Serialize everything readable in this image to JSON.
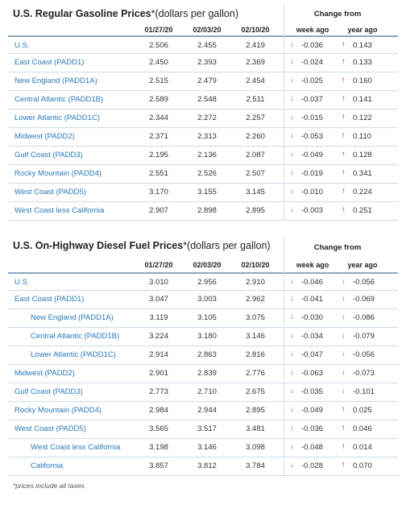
{
  "gasoline": {
    "title": "U.S. Regular Gasoline Prices",
    "title_unit": "*(dollars per gallon)",
    "change_from": "Change from",
    "columns": [
      "01/27/20",
      "02/03/20",
      "02/10/20",
      "week ago",
      "year ago"
    ],
    "rows": [
      {
        "region": "U.S.",
        "indent": false,
        "v1": "2.506",
        "v2": "2.455",
        "v3": "2.419",
        "week": "-0.036",
        "week_dir": "down",
        "year": "0.143",
        "year_dir": "up"
      },
      {
        "region": "East Coast (PADD1)",
        "indent": false,
        "v1": "2.450",
        "v2": "2.393",
        "v3": "2.369",
        "week": "-0.024",
        "week_dir": "down",
        "year": "0.133",
        "year_dir": "up"
      },
      {
        "region": "New England (PADD1A)",
        "indent": false,
        "v1": "2.515",
        "v2": "2.479",
        "v3": "2.454",
        "week": "-0.025",
        "week_dir": "down",
        "year": "0.160",
        "year_dir": "up"
      },
      {
        "region": "Central Atlantic (PADD1B)",
        "indent": false,
        "v1": "2.589",
        "v2": "2.548",
        "v3": "2.511",
        "week": "-0.037",
        "week_dir": "down",
        "year": "0.141",
        "year_dir": "up"
      },
      {
        "region": "Lower Atlantic (PADD1C)",
        "indent": false,
        "v1": "2.344",
        "v2": "2.272",
        "v3": "2.257",
        "week": "-0.015",
        "week_dir": "down",
        "year": "0.122",
        "year_dir": "up"
      },
      {
        "region": "Midwest (PADD2)",
        "indent": false,
        "v1": "2.371",
        "v2": "2.313",
        "v3": "2.260",
        "week": "-0.053",
        "week_dir": "down",
        "year": "0.110",
        "year_dir": "up"
      },
      {
        "region": "Gulf Coast (PADD3)",
        "indent": false,
        "v1": "2.195",
        "v2": "2.136",
        "v3": "2.087",
        "week": "-0.049",
        "week_dir": "down",
        "year": "0.128",
        "year_dir": "up"
      },
      {
        "region": "Rocky Mountain (PADD4)",
        "indent": false,
        "v1": "2.551",
        "v2": "2.526",
        "v3": "2.507",
        "week": "-0.019",
        "week_dir": "down",
        "year": "0.341",
        "year_dir": "up"
      },
      {
        "region": "West Coast (PADD5)",
        "indent": false,
        "v1": "3.170",
        "v2": "3.155",
        "v3": "3.145",
        "week": "-0.010",
        "week_dir": "down",
        "year": "0.224",
        "year_dir": "up"
      },
      {
        "region": "West Coast less California",
        "indent": false,
        "v1": "2.907",
        "v2": "2.898",
        "v3": "2.895",
        "week": "-0.003",
        "week_dir": "down",
        "year": "0.251",
        "year_dir": "up"
      }
    ]
  },
  "diesel": {
    "title": "U.S. On-Highway Diesel Fuel Prices",
    "title_unit": "*(dollars per gallon)",
    "change_from": "Change from",
    "columns": [
      "01/27/20",
      "02/03/20",
      "02/10/20",
      "week ago",
      "year ago"
    ],
    "rows": [
      {
        "region": "U.S.",
        "indent": false,
        "v1": "3.010",
        "v2": "2.956",
        "v3": "2.910",
        "week": "-0.046",
        "week_dir": "down",
        "year": "-0.056",
        "year_dir": "down"
      },
      {
        "region": "East Coast (PADD1)",
        "indent": false,
        "v1": "3.047",
        "v2": "3.003",
        "v3": "2.962",
        "week": "-0.041",
        "week_dir": "down",
        "year": "-0.069",
        "year_dir": "down"
      },
      {
        "region": "New England (PADD1A)",
        "indent": true,
        "v1": "3.119",
        "v2": "3.105",
        "v3": "3.075",
        "week": "-0.030",
        "week_dir": "down",
        "year": "-0.086",
        "year_dir": "down"
      },
      {
        "region": "Central Atlantic (PADD1B)",
        "indent": true,
        "v1": "3.224",
        "v2": "3.180",
        "v3": "3.146",
        "week": "-0.034",
        "week_dir": "down",
        "year": "-0.079",
        "year_dir": "down"
      },
      {
        "region": "Lower Atlantic (PADD1C)",
        "indent": true,
        "v1": "2.914",
        "v2": "2.863",
        "v3": "2.816",
        "week": "-0.047",
        "week_dir": "down",
        "year": "-0.056",
        "year_dir": "down"
      },
      {
        "region": "Midwest (PADD2)",
        "indent": false,
        "v1": "2.901",
        "v2": "2.839",
        "v3": "2.776",
        "week": "-0.063",
        "week_dir": "down",
        "year": "-0.073",
        "year_dir": "down"
      },
      {
        "region": "Gulf Coast (PADD3)",
        "indent": false,
        "v1": "2.773",
        "v2": "2.710",
        "v3": "2.675",
        "week": "-0.035",
        "week_dir": "down",
        "year": "-0.101",
        "year_dir": "down"
      },
      {
        "region": "Rocky Mountain (PADD4)",
        "indent": false,
        "v1": "2.984",
        "v2": "2.944",
        "v3": "2.895",
        "week": "-0.049",
        "week_dir": "down",
        "year": "0.025",
        "year_dir": "up"
      },
      {
        "region": "West Coast (PADD5)",
        "indent": false,
        "v1": "3.565",
        "v2": "3.517",
        "v3": "3.481",
        "week": "-0.036",
        "week_dir": "down",
        "year": "0.046",
        "year_dir": "up"
      },
      {
        "region": "West Coast less California",
        "indent": true,
        "v1": "3.198",
        "v2": "3.146",
        "v3": "3.098",
        "week": "-0.048",
        "week_dir": "down",
        "year": "0.014",
        "year_dir": "up"
      },
      {
        "region": "California",
        "indent": true,
        "v1": "3.857",
        "v2": "3.812",
        "v3": "3.784",
        "week": "-0.028",
        "week_dir": "down",
        "year": "0.070",
        "year_dir": "up"
      }
    ]
  },
  "footnote": "*prices include all taxes",
  "colors": {
    "link": "#2a7ab8",
    "down_arrow": "#3f9b2a",
    "up_arrow": "#b21e2d",
    "rule": "#8fa9c4"
  },
  "icons": {
    "down": "down-arrow-icon",
    "up": "up-arrow-icon"
  }
}
